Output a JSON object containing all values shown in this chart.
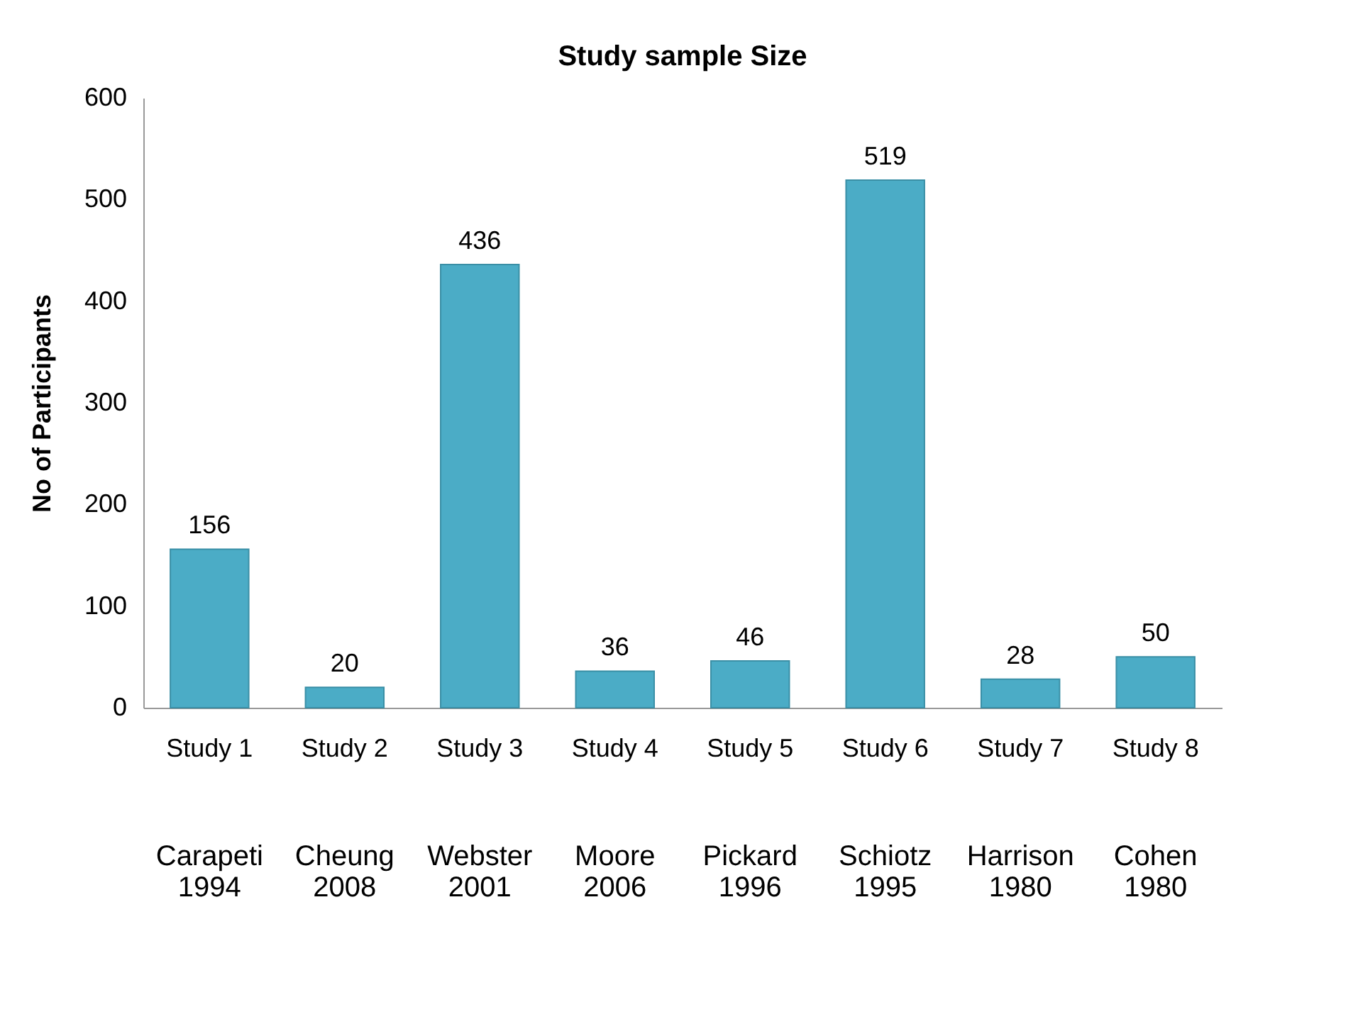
{
  "chart_data": {
    "type": "bar",
    "title": "Study sample Size",
    "ylabel": "No of Participants",
    "categories": [
      "Study 1",
      "Study 2",
      "Study 3",
      "Study 4",
      "Study 5",
      "Study 6",
      "Study 7",
      "Study 8"
    ],
    "values": [
      156,
      20,
      436,
      36,
      46,
      519,
      28,
      50
    ],
    "color": "#4bacc6",
    "ylim": [
      0,
      600
    ],
    "yticks": [
      0,
      100,
      200,
      300,
      400,
      500,
      600
    ],
    "grid": false,
    "data_labels": true,
    "annotations": [
      "Carapeti 1994",
      "Cheung 2008",
      "Webster 2001",
      "Moore 2006",
      "Pickard 1996",
      "Schiotz 1995",
      "Harrison 1980",
      "Cohen 1980"
    ]
  }
}
